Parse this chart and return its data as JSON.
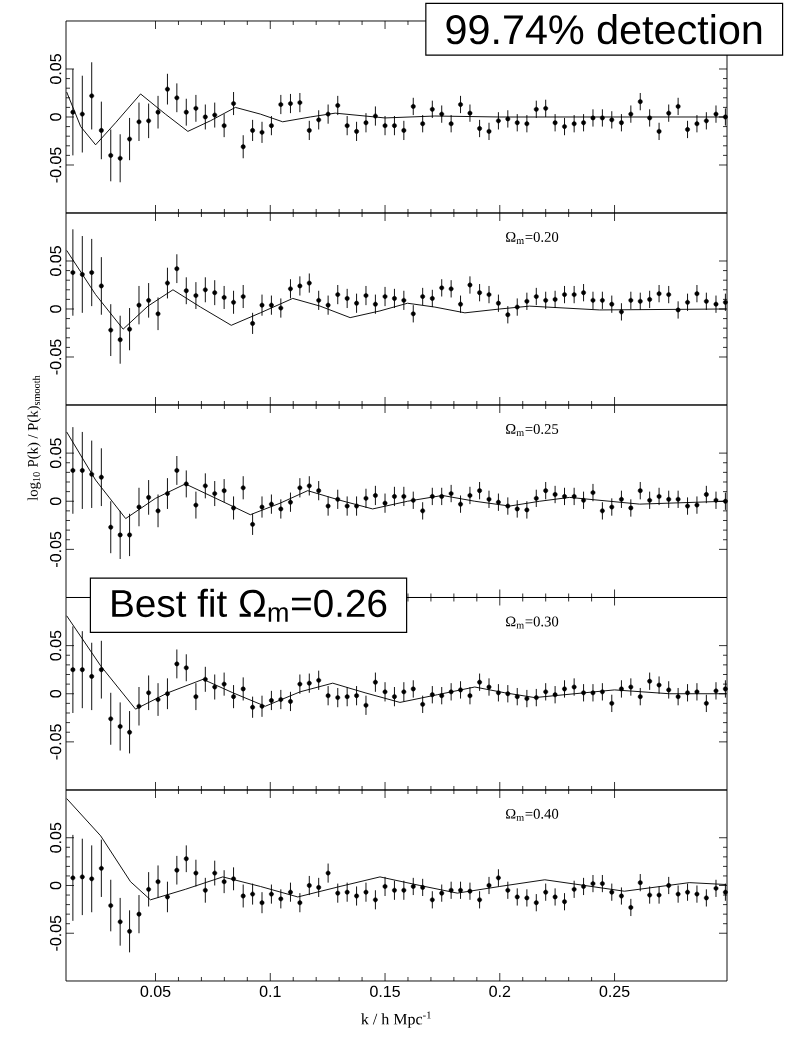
{
  "chart_data": [
    {
      "type": "scatter",
      "xlim": [
        0.011,
        0.299
      ],
      "ylim": [
        -0.1,
        0.1
      ],
      "xticks": [
        0.05,
        0.1,
        0.15,
        0.2,
        0.25
      ],
      "yticks": [
        -0.05,
        0,
        0.05
      ],
      "tick_labels": "y",
      "annotations": [
        "99.74% detection"
      ],
      "series": [
        {
          "type": "scatter",
          "marker": "circle",
          "color": "#000000",
          "x": [
            0.014,
            0.0181,
            0.0222,
            0.0264,
            0.0305,
            0.0346,
            0.0387,
            0.0428,
            0.047,
            0.0511,
            0.0552,
            0.0593,
            0.0634,
            0.0676,
            0.0717,
            0.0758,
            0.0799,
            0.084,
            0.0882,
            0.0923,
            0.0964,
            0.1005,
            0.1046,
            0.1088,
            0.1129,
            0.117,
            0.1211,
            0.1252,
            0.1294,
            0.1335,
            0.1376,
            0.1417,
            0.1458,
            0.15,
            0.1541,
            0.1582,
            0.1623,
            0.1664,
            0.1706,
            0.1747,
            0.1788,
            0.1829,
            0.187,
            0.1912,
            0.1953,
            0.1994,
            0.2035,
            0.2076,
            0.2118,
            0.2159,
            0.22,
            0.2241,
            0.2282,
            0.2324,
            0.2365,
            0.2406,
            0.2447,
            0.2488,
            0.253,
            0.2571,
            0.2612,
            0.2653,
            0.2694,
            0.2736,
            0.2777,
            0.2818,
            0.2859,
            0.29,
            0.2942,
            0.2983
          ],
          "values": [
            0.005,
            0.003,
            0.022,
            -0.014,
            -0.04,
            -0.043,
            -0.023,
            -0.005,
            -0.004,
            0.005,
            0.029,
            0.02,
            0.005,
            0.009,
            0.0,
            0.002,
            -0.009,
            0.014,
            -0.031,
            -0.014,
            -0.016,
            -0.009,
            0.013,
            0.014,
            0.015,
            -0.014,
            -0.003,
            0.003,
            0.012,
            -0.009,
            -0.015,
            -0.006,
            0.001,
            -0.009,
            -0.009,
            -0.014,
            0.011,
            -0.007,
            0.008,
            0.003,
            -0.007,
            0.013,
            0.004,
            -0.012,
            -0.015,
            -0.004,
            -0.002,
            -0.006,
            -0.007,
            0.008,
            0.009,
            -0.006,
            -0.01,
            -0.007,
            -0.006,
            -0.001,
            -0.001,
            -0.003,
            -0.006,
            0.003,
            0.016,
            -0.001,
            -0.015,
            0.004,
            0.011,
            -0.013,
            -0.007,
            -0.004,
            0.003,
            0.0
          ],
          "errors": [
            0.045,
            0.04,
            0.035,
            0.03,
            0.027,
            0.025,
            0.022,
            0.02,
            0.018,
            0.017,
            0.016,
            0.015,
            0.014,
            0.014,
            0.013,
            0.013,
            0.012,
            0.012,
            0.012,
            0.011,
            0.011,
            0.01,
            0.01,
            0.01,
            0.01,
            0.01,
            0.01,
            0.01,
            0.01,
            0.01,
            0.01,
            0.01,
            0.01,
            0.01,
            0.01,
            0.01,
            0.009,
            0.009,
            0.009,
            0.009,
            0.009,
            0.009,
            0.009,
            0.009,
            0.009,
            0.009,
            0.009,
            0.009,
            0.009,
            0.009,
            0.009,
            0.009,
            0.009,
            0.009,
            0.009,
            0.009,
            0.009,
            0.009,
            0.009,
            0.009,
            0.009,
            0.009,
            0.009,
            0.009,
            0.009,
            0.009,
            0.009,
            0.009,
            0.009,
            0.009
          ]
        },
        {
          "type": "line",
          "color": "#000000",
          "x": [
            0.0113,
            0.0174,
            0.0239,
            0.0326,
            0.0435,
            0.0543,
            0.0641,
            0.0739,
            0.0848,
            0.0957,
            0.1054,
            0.1174,
            0.1283,
            0.15,
            0.1717,
            0.2,
            0.2435,
            0.2987
          ],
          "values": [
            0.026,
            -0.01,
            -0.029,
            -0.006,
            0.024,
            0.003,
            -0.015,
            -0.004,
            0.01,
            0.003,
            -0.005,
            0.0,
            0.004,
            -0.001,
            0.001,
            0,
            0,
            0
          ]
        }
      ]
    },
    {
      "type": "scatter",
      "xlim": [
        0.011,
        0.299
      ],
      "ylim": [
        -0.1,
        0.1
      ],
      "xticks": [
        0.05,
        0.1,
        0.15,
        0.2,
        0.25
      ],
      "yticks": [
        -0.05,
        0,
        0.05
      ],
      "tick_labels": "y",
      "annotations": [
        "Ω$_{m}$=0.20"
      ],
      "series": [
        {
          "type": "scatter",
          "marker": "circle",
          "color": "#000000",
          "x": [
            0.014,
            0.0181,
            0.0222,
            0.0264,
            0.0305,
            0.0346,
            0.0387,
            0.0428,
            0.047,
            0.0511,
            0.0552,
            0.0593,
            0.0634,
            0.0676,
            0.0717,
            0.0758,
            0.0799,
            0.084,
            0.0882,
            0.0923,
            0.0964,
            0.1005,
            0.1046,
            0.1088,
            0.1129,
            0.117,
            0.1211,
            0.1252,
            0.1294,
            0.1335,
            0.1376,
            0.1417,
            0.1458,
            0.15,
            0.1541,
            0.1582,
            0.1623,
            0.1664,
            0.1706,
            0.1747,
            0.1788,
            0.1829,
            0.187,
            0.1912,
            0.1953,
            0.1994,
            0.2035,
            0.2076,
            0.2118,
            0.2159,
            0.22,
            0.2241,
            0.2282,
            0.2324,
            0.2365,
            0.2406,
            0.2447,
            0.2488,
            0.253,
            0.2571,
            0.2612,
            0.2653,
            0.2694,
            0.2736,
            0.2777,
            0.2818,
            0.2859,
            0.29,
            0.2942,
            0.2983
          ],
          "values": [
            0.038,
            0.036,
            0.038,
            0.024,
            -0.022,
            -0.032,
            -0.021,
            0.004,
            0.009,
            -0.005,
            0.027,
            0.042,
            0.019,
            0.014,
            0.02,
            0.017,
            0.012,
            0.007,
            0.013,
            -0.015,
            0.004,
            0.004,
            0.001,
            0.021,
            0.024,
            0.027,
            0.009,
            0.004,
            0.015,
            0.011,
            0.006,
            0.014,
            0.005,
            0.013,
            0.011,
            0.009,
            -0.005,
            0.013,
            0.011,
            0.022,
            0.021,
            0.005,
            0.025,
            0.017,
            0.015,
            0.006,
            -0.006,
            0.002,
            0.008,
            0.013,
            0.009,
            0.01,
            0.015,
            0.015,
            0.017,
            0.009,
            0.009,
            0.005,
            -0.003,
            0.009,
            0.008,
            0.01,
            0.016,
            0.015,
            -0.001,
            0.007,
            0.016,
            0.008,
            0.005,
            0.007
          ],
          "errors": [
            0.045,
            0.04,
            0.035,
            0.03,
            0.027,
            0.025,
            0.022,
            0.02,
            0.018,
            0.017,
            0.016,
            0.015,
            0.014,
            0.014,
            0.013,
            0.013,
            0.012,
            0.012,
            0.012,
            0.011,
            0.011,
            0.01,
            0.01,
            0.01,
            0.01,
            0.01,
            0.01,
            0.01,
            0.01,
            0.01,
            0.01,
            0.01,
            0.01,
            0.01,
            0.01,
            0.01,
            0.009,
            0.009,
            0.009,
            0.009,
            0.009,
            0.009,
            0.009,
            0.009,
            0.009,
            0.009,
            0.009,
            0.009,
            0.009,
            0.009,
            0.009,
            0.009,
            0.009,
            0.009,
            0.009,
            0.009,
            0.009,
            0.009,
            0.009,
            0.009,
            0.009,
            0.009,
            0.009,
            0.009,
            0.009,
            0.009,
            0.009,
            0.009,
            0.009,
            0.009
          ]
        },
        {
          "type": "line",
          "color": "#000000",
          "x": [
            0.0113,
            0.0239,
            0.0359,
            0.0467,
            0.0576,
            0.0696,
            0.083,
            0.0957,
            0.1098,
            0.1217,
            0.1348,
            0.1478,
            0.1598,
            0.1717,
            0.1848,
            0.2,
            0.213,
            0.2435,
            0.2987
          ],
          "values": [
            0.061,
            0.015,
            -0.021,
            0.003,
            0.02,
            0.002,
            -0.017,
            -0.004,
            0.011,
            0.003,
            -0.009,
            -0.002,
            0.006,
            0.002,
            -0.004,
            0.0,
            0.003,
            -0.001,
            0.0
          ]
        }
      ]
    },
    {
      "type": "scatter",
      "xlim": [
        0.011,
        0.299
      ],
      "ylim": [
        -0.1,
        0.1
      ],
      "xticks": [
        0.05,
        0.1,
        0.15,
        0.2,
        0.25
      ],
      "yticks": [
        -0.05,
        0,
        0.05
      ],
      "tick_labels": "y",
      "ylabel": "log$_{10}$ P(k) / P(k)$_{smooth}$",
      "annotations": [
        "Ω$_{m}$=0.25"
      ],
      "series": [
        {
          "type": "scatter",
          "marker": "circle",
          "color": "#000000",
          "x": [
            0.014,
            0.0181,
            0.0222,
            0.0264,
            0.0305,
            0.0346,
            0.0387,
            0.0428,
            0.047,
            0.0511,
            0.0552,
            0.0593,
            0.0634,
            0.0676,
            0.0717,
            0.0758,
            0.0799,
            0.084,
            0.0882,
            0.0923,
            0.0964,
            0.1005,
            0.1046,
            0.1088,
            0.1129,
            0.117,
            0.1211,
            0.1252,
            0.1294,
            0.1335,
            0.1376,
            0.1417,
            0.1458,
            0.15,
            0.1541,
            0.1582,
            0.1623,
            0.1664,
            0.1706,
            0.1747,
            0.1788,
            0.1829,
            0.187,
            0.1912,
            0.1953,
            0.1994,
            0.2035,
            0.2076,
            0.2118,
            0.2159,
            0.22,
            0.2241,
            0.2282,
            0.2324,
            0.2365,
            0.2406,
            0.2447,
            0.2488,
            0.253,
            0.2571,
            0.2612,
            0.2653,
            0.2694,
            0.2736,
            0.2777,
            0.2818,
            0.2859,
            0.29,
            0.2942,
            0.2983
          ],
          "values": [
            0.032,
            0.032,
            0.028,
            0.025,
            -0.027,
            -0.035,
            -0.035,
            -0.006,
            0.004,
            -0.01,
            0.008,
            0.032,
            0.018,
            -0.004,
            0.016,
            0.008,
            0.011,
            -0.007,
            0.014,
            -0.024,
            -0.006,
            -0.003,
            -0.008,
            -0.001,
            0.014,
            0.016,
            0.011,
            -0.005,
            0.002,
            -0.005,
            -0.005,
            0.003,
            0.006,
            -0.002,
            0.005,
            0.005,
            0.001,
            -0.01,
            0.005,
            0.005,
            0.008,
            -0.003,
            0.006,
            0.011,
            0.002,
            -0.001,
            -0.005,
            -0.008,
            -0.009,
            0.003,
            0.011,
            0.007,
            0.005,
            0.005,
            0.001,
            0.009,
            -0.01,
            -0.006,
            0.002,
            -0.007,
            0.011,
            0.001,
            0.005,
            0.002,
            0.002,
            -0.005,
            -0.004,
            0.007,
            0.001,
            0.0
          ],
          "errors": [
            0.045,
            0.04,
            0.035,
            0.03,
            0.027,
            0.025,
            0.022,
            0.02,
            0.018,
            0.017,
            0.016,
            0.015,
            0.014,
            0.014,
            0.013,
            0.013,
            0.012,
            0.012,
            0.012,
            0.011,
            0.011,
            0.01,
            0.01,
            0.01,
            0.01,
            0.01,
            0.01,
            0.01,
            0.01,
            0.01,
            0.01,
            0.01,
            0.01,
            0.01,
            0.01,
            0.01,
            0.009,
            0.009,
            0.009,
            0.009,
            0.009,
            0.009,
            0.009,
            0.009,
            0.009,
            0.009,
            0.009,
            0.009,
            0.009,
            0.009,
            0.009,
            0.009,
            0.009,
            0.009,
            0.009,
            0.009,
            0.009,
            0.009,
            0.009,
            0.009,
            0.009,
            0.009,
            0.009,
            0.009,
            0.009,
            0.009,
            0.009,
            0.009,
            0.009,
            0.009
          ]
        },
        {
          "type": "line",
          "color": "#000000",
          "x": [
            0.0113,
            0.0239,
            0.037,
            0.05,
            0.063,
            0.0772,
            0.0913,
            0.1043,
            0.1163,
            0.1304,
            0.1446,
            0.1598,
            0.175,
            0.1891,
            0.2043,
            0.2174,
            0.2304,
            0.2609,
            0.2987
          ],
          "values": [
            0.072,
            0.022,
            -0.018,
            0.003,
            0.018,
            0.002,
            -0.014,
            -0.002,
            0.011,
            0.001,
            -0.008,
            0.0,
            0.006,
            0.0,
            -0.005,
            0.0,
            0.004,
            -0.003,
            0.0
          ]
        }
      ]
    },
    {
      "type": "scatter",
      "xlim": [
        0.011,
        0.299
      ],
      "ylim": [
        -0.1,
        0.1
      ],
      "xticks": [
        0.05,
        0.1,
        0.15,
        0.2,
        0.25
      ],
      "yticks": [
        -0.05,
        0,
        0.05
      ],
      "tick_labels": "y",
      "annotations": [
        "Best fit Ω$_{m}$=0.26",
        "Ω$_{m}$=0.30"
      ],
      "series": [
        {
          "type": "scatter",
          "marker": "circle",
          "color": "#000000",
          "x": [
            0.014,
            0.0181,
            0.0222,
            0.0264,
            0.0305,
            0.0346,
            0.0387,
            0.0428,
            0.047,
            0.0511,
            0.0552,
            0.0593,
            0.0634,
            0.0676,
            0.0717,
            0.0758,
            0.0799,
            0.084,
            0.0882,
            0.0923,
            0.0964,
            0.1005,
            0.1046,
            0.1088,
            0.1129,
            0.117,
            0.1211,
            0.1252,
            0.1294,
            0.1335,
            0.1376,
            0.1417,
            0.1458,
            0.15,
            0.1541,
            0.1582,
            0.1623,
            0.1664,
            0.1706,
            0.1747,
            0.1788,
            0.1829,
            0.187,
            0.1912,
            0.1953,
            0.1994,
            0.2035,
            0.2076,
            0.2118,
            0.2159,
            0.22,
            0.2241,
            0.2282,
            0.2324,
            0.2365,
            0.2406,
            0.2447,
            0.2488,
            0.253,
            0.2571,
            0.2612,
            0.2653,
            0.2694,
            0.2736,
            0.2777,
            0.2818,
            0.2859,
            0.29,
            0.2942,
            0.2983
          ],
          "values": [
            0.025,
            0.025,
            0.018,
            0.025,
            -0.026,
            -0.034,
            -0.04,
            -0.013,
            0.001,
            -0.006,
            0.0,
            0.031,
            0.027,
            -0.003,
            0.015,
            0.007,
            0.01,
            -0.003,
            0.005,
            -0.014,
            -0.013,
            -0.007,
            -0.006,
            -0.008,
            0.01,
            0.011,
            0.014,
            -0.002,
            -0.004,
            -0.003,
            -0.002,
            -0.012,
            0.012,
            0.002,
            -0.003,
            0.002,
            0.005,
            -0.011,
            -0.001,
            -0.002,
            0.002,
            0.004,
            -0.002,
            0.012,
            0.007,
            0.001,
            0.0,
            -0.003,
            -0.005,
            -0.004,
            0.002,
            -0.001,
            0.005,
            0.007,
            0.001,
            0.001,
            0.002,
            -0.01,
            0.005,
            0.007,
            -0.003,
            0.013,
            0.009,
            0.004,
            -0.003,
            0.001,
            0.002,
            -0.01,
            0.003,
            0.005
          ],
          "errors": [
            0.045,
            0.04,
            0.035,
            0.03,
            0.027,
            0.025,
            0.022,
            0.02,
            0.018,
            0.017,
            0.016,
            0.015,
            0.014,
            0.014,
            0.013,
            0.013,
            0.012,
            0.012,
            0.012,
            0.011,
            0.011,
            0.01,
            0.01,
            0.01,
            0.01,
            0.01,
            0.01,
            0.01,
            0.01,
            0.01,
            0.01,
            0.01,
            0.01,
            0.01,
            0.01,
            0.01,
            0.009,
            0.009,
            0.009,
            0.009,
            0.009,
            0.009,
            0.009,
            0.009,
            0.009,
            0.009,
            0.009,
            0.009,
            0.009,
            0.009,
            0.009,
            0.009,
            0.009,
            0.009,
            0.009,
            0.009,
            0.009,
            0.009,
            0.009,
            0.009,
            0.009,
            0.009,
            0.009,
            0.009,
            0.009,
            0.009,
            0.009,
            0.009,
            0.009,
            0.009
          ]
        },
        {
          "type": "line",
          "color": "#000000",
          "x": [
            0.0113,
            0.0261,
            0.0413,
            0.0554,
            0.0707,
            0.0837,
            0.0978,
            0.113,
            0.1272,
            0.1413,
            0.1565,
            0.1728,
            0.1891,
            0.2022,
            0.2152,
            0.2326,
            0.25,
            0.2739,
            0.2987
          ],
          "values": [
            0.081,
            0.029,
            -0.016,
            0.001,
            0.015,
            0.001,
            -0.013,
            0.002,
            0.011,
            0.001,
            -0.009,
            -0.001,
            0.007,
            0.001,
            -0.004,
            0.0,
            0.004,
            0.0,
            0.0
          ]
        }
      ]
    },
    {
      "type": "scatter",
      "xlim": [
        0.011,
        0.299
      ],
      "ylim": [
        -0.1,
        0.1
      ],
      "xticks": [
        0.05,
        0.1,
        0.15,
        0.2,
        0.25
      ],
      "yticks": [
        -0.05,
        0,
        0.05
      ],
      "xlabel": "k / h Mpc$^{-1}$",
      "annotations": [
        "Ω$_{m}$=0.40"
      ],
      "series": [
        {
          "type": "scatter",
          "marker": "circle",
          "color": "#000000",
          "x": [
            0.014,
            0.0181,
            0.0222,
            0.0264,
            0.0305,
            0.0346,
            0.0387,
            0.0428,
            0.047,
            0.0511,
            0.0552,
            0.0593,
            0.0634,
            0.0676,
            0.0717,
            0.0758,
            0.0799,
            0.084,
            0.0882,
            0.0923,
            0.0964,
            0.1005,
            0.1046,
            0.1088,
            0.1129,
            0.117,
            0.1211,
            0.1252,
            0.1294,
            0.1335,
            0.1376,
            0.1417,
            0.1458,
            0.15,
            0.1541,
            0.1582,
            0.1623,
            0.1664,
            0.1706,
            0.1747,
            0.1788,
            0.1829,
            0.187,
            0.1912,
            0.1953,
            0.1994,
            0.2035,
            0.2076,
            0.2118,
            0.2159,
            0.22,
            0.2241,
            0.2282,
            0.2324,
            0.2365,
            0.2406,
            0.2447,
            0.2488,
            0.253,
            0.2571,
            0.2612,
            0.2653,
            0.2694,
            0.2736,
            0.2777,
            0.2818,
            0.2859,
            0.29,
            0.2942,
            0.2983
          ],
          "values": [
            0.008,
            0.009,
            0.007,
            0.018,
            -0.021,
            -0.038,
            -0.048,
            -0.03,
            -0.004,
            0.004,
            -0.012,
            0.016,
            0.028,
            0.013,
            -0.005,
            0.013,
            0.004,
            0.007,
            -0.011,
            -0.009,
            -0.018,
            -0.009,
            -0.014,
            -0.007,
            -0.018,
            0.0,
            -0.002,
            0.013,
            -0.008,
            -0.007,
            -0.011,
            -0.007,
            -0.015,
            -0.001,
            -0.005,
            -0.005,
            -0.001,
            -0.002,
            -0.015,
            -0.008,
            -0.005,
            -0.005,
            -0.006,
            -0.015,
            0.0,
            0.008,
            -0.005,
            -0.012,
            -0.013,
            -0.018,
            -0.007,
            -0.012,
            -0.017,
            -0.004,
            -0.001,
            0.002,
            0.002,
            -0.007,
            -0.011,
            -0.023,
            0.003,
            -0.01,
            -0.01,
            0.0,
            -0.009,
            -0.007,
            -0.009,
            -0.013,
            -0.003,
            -0.007
          ],
          "errors": [
            0.045,
            0.04,
            0.035,
            0.03,
            0.027,
            0.025,
            0.022,
            0.02,
            0.018,
            0.017,
            0.016,
            0.015,
            0.014,
            0.014,
            0.013,
            0.013,
            0.012,
            0.012,
            0.012,
            0.011,
            0.011,
            0.01,
            0.01,
            0.01,
            0.01,
            0.01,
            0.01,
            0.01,
            0.01,
            0.01,
            0.01,
            0.01,
            0.01,
            0.01,
            0.01,
            0.01,
            0.009,
            0.009,
            0.009,
            0.009,
            0.009,
            0.009,
            0.009,
            0.009,
            0.009,
            0.009,
            0.009,
            0.009,
            0.009,
            0.009,
            0.009,
            0.009,
            0.009,
            0.009,
            0.009,
            0.009,
            0.009,
            0.009,
            0.009,
            0.009,
            0.009,
            0.009,
            0.009,
            0.009,
            0.009,
            0.009,
            0.009,
            0.009,
            0.009,
            0.009
          ]
        },
        {
          "type": "line",
          "color": "#000000",
          "x": [
            0.0113,
            0.0261,
            0.0391,
            0.0478,
            0.063,
            0.0793,
            0.0957,
            0.112,
            0.1304,
            0.1478,
            0.1652,
            0.1815,
            0.2,
            0.2196,
            0.237,
            0.2543,
            0.2826,
            0.2987
          ],
          "values": [
            0.091,
            0.052,
            0.004,
            -0.015,
            -0.004,
            0.009,
            -0.001,
            -0.012,
            -0.001,
            0.009,
            0.0,
            -0.008,
            -0.001,
            0.006,
            0.0,
            -0.006,
            0.003,
            0.001
          ]
        }
      ]
    }
  ]
}
